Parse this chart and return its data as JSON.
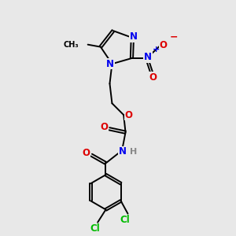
{
  "bg_color": "#e8e8e8",
  "bond_color": "#000000",
  "line_width": 1.4,
  "font_size_atom": 8.5,
  "font_size_small": 7.0,
  "colors": {
    "N": "#0000ee",
    "O": "#dd0000",
    "Cl": "#00bb00",
    "C": "#000000",
    "H": "#888888"
  }
}
